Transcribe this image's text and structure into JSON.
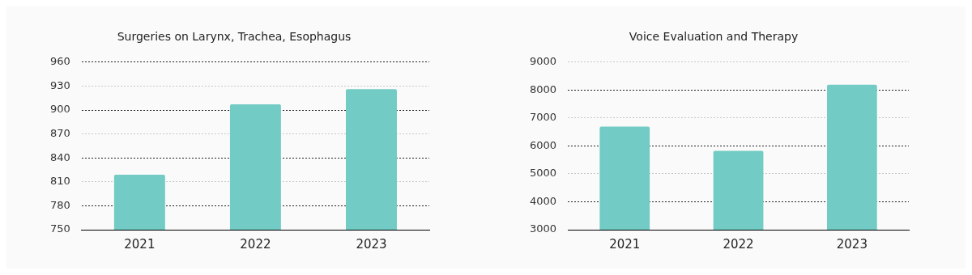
{
  "chart_data": [
    {
      "type": "bar",
      "title": "Surgeries on Larynx, Trachea, Esophagus",
      "categories": [
        "2021",
        "2022",
        "2023"
      ],
      "values": [
        819,
        907,
        926
      ],
      "color": "#72cbc4",
      "ylim": [
        750,
        960
      ],
      "yticks": [
        750,
        780,
        810,
        840,
        870,
        900,
        930,
        960
      ],
      "grid": "y"
    },
    {
      "type": "bar",
      "title": "Voice Evaluation and Therapy",
      "categories": [
        "2021",
        "2022",
        "2023"
      ],
      "values": [
        6690,
        5820,
        8190
      ],
      "color": "#72cbc4",
      "ylim": [
        3000,
        9000
      ],
      "yticks": [
        3000,
        4000,
        5000,
        6000,
        7000,
        8000,
        9000
      ],
      "grid": "y"
    }
  ]
}
